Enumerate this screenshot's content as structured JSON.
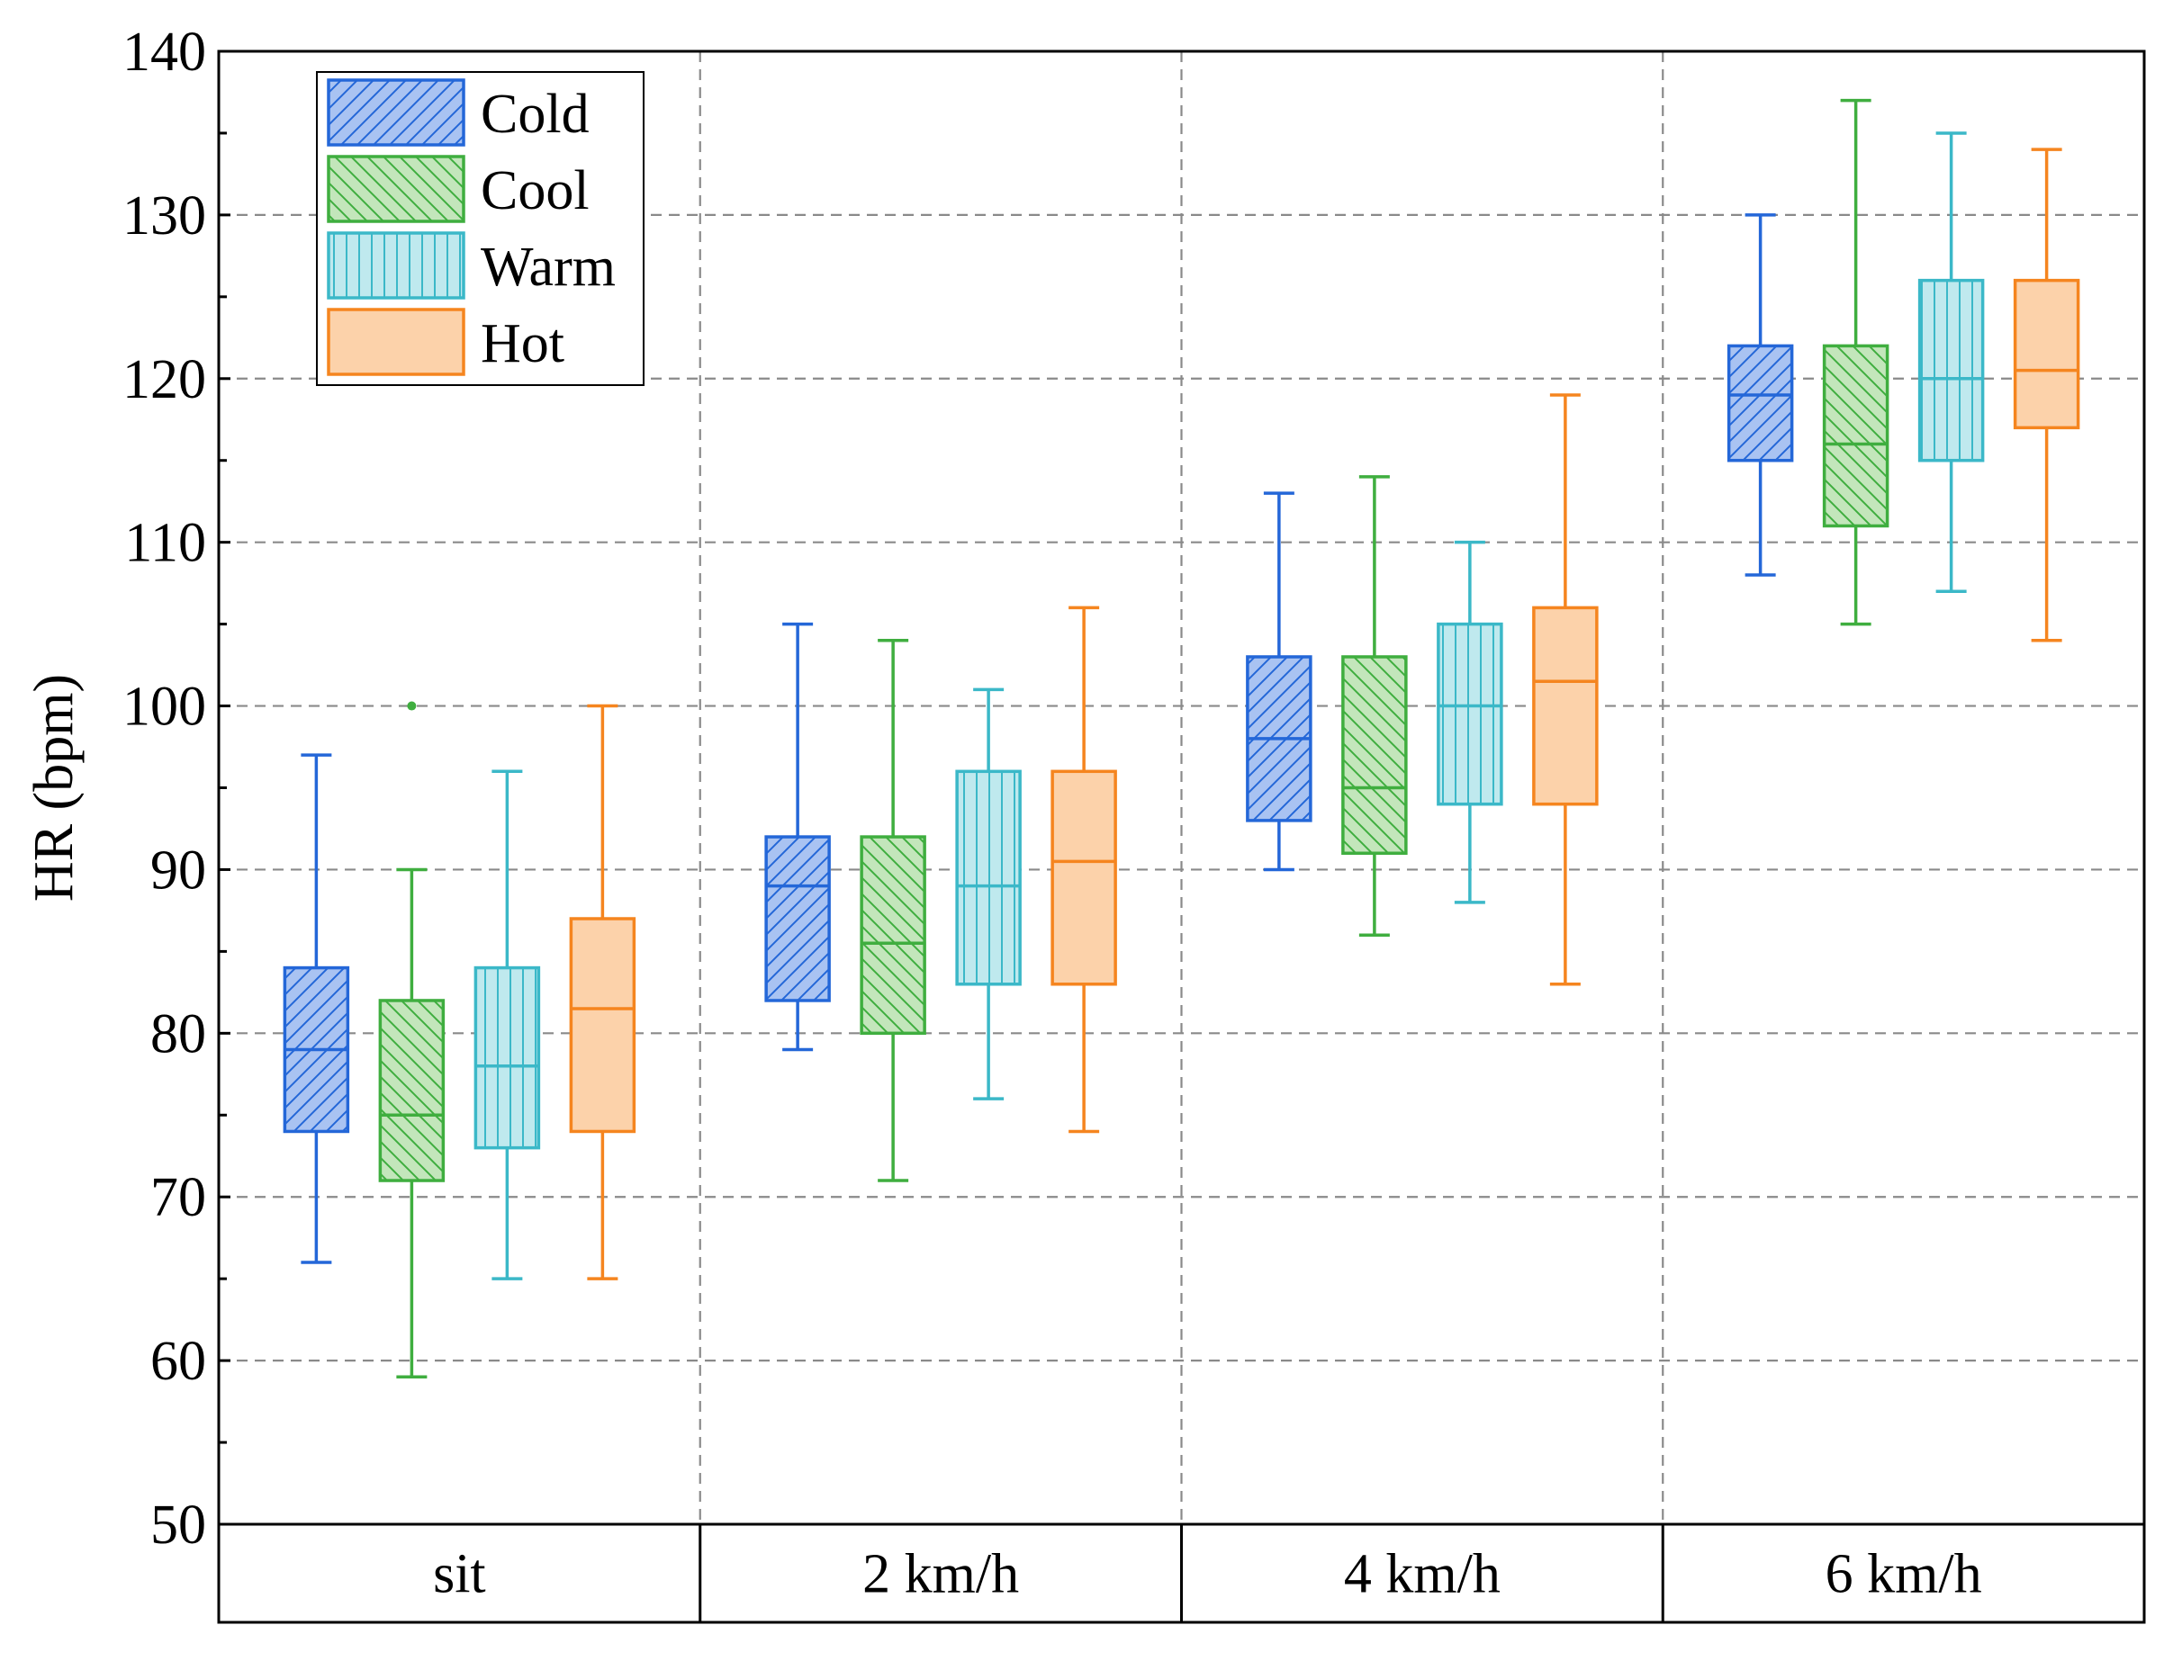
{
  "chart_data": {
    "type": "box",
    "title": "",
    "xlabel": "",
    "ylabel": "HR (bpm)",
    "ylim": [
      50,
      140
    ],
    "y_ticks": [
      50,
      60,
      70,
      80,
      90,
      100,
      110,
      120,
      130,
      140
    ],
    "y_minor_step": 5,
    "grid": true,
    "legend_position": "top-left",
    "categories": [
      "sit",
      "2 km/h",
      "4 km/h",
      "6 km/h"
    ],
    "series": [
      {
        "name": "Cold",
        "color": "#2467d8",
        "fill": "#a9c3f2",
        "pattern": "diagonal-up",
        "boxes": [
          {
            "min": 66,
            "q1": 74,
            "median": 79,
            "q3": 84,
            "max": 97,
            "outliers": []
          },
          {
            "min": 79,
            "q1": 82,
            "median": 89,
            "q3": 92,
            "max": 105,
            "outliers": []
          },
          {
            "min": 90,
            "q1": 93,
            "median": 98,
            "q3": 103,
            "max": 113,
            "outliers": []
          },
          {
            "min": 108,
            "q1": 115,
            "median": 119,
            "q3": 122,
            "max": 130,
            "outliers": []
          }
        ]
      },
      {
        "name": "Cool",
        "color": "#3fae3f",
        "fill": "#c3e6bb",
        "pattern": "diagonal-down",
        "boxes": [
          {
            "min": 59,
            "q1": 71,
            "median": 75,
            "q3": 82,
            "max": 90,
            "outliers": [
              100
            ]
          },
          {
            "min": 71,
            "q1": 80,
            "median": 85.5,
            "q3": 92,
            "max": 104,
            "outliers": []
          },
          {
            "min": 86,
            "q1": 91,
            "median": 95,
            "q3": 103,
            "max": 114,
            "outliers": []
          },
          {
            "min": 105,
            "q1": 111,
            "median": 116,
            "q3": 122,
            "max": 137,
            "outliers": []
          }
        ]
      },
      {
        "name": "Warm",
        "color": "#3bb8c8",
        "fill": "#bfe9ee",
        "pattern": "vertical",
        "boxes": [
          {
            "min": 65,
            "q1": 73,
            "median": 78,
            "q3": 84,
            "max": 96,
            "outliers": []
          },
          {
            "min": 76,
            "q1": 83,
            "median": 89,
            "q3": 96,
            "max": 101,
            "outliers": []
          },
          {
            "min": 88,
            "q1": 94,
            "median": 100,
            "q3": 105,
            "max": 110,
            "outliers": []
          },
          {
            "min": 107,
            "q1": 115,
            "median": 120,
            "q3": 126,
            "max": 135,
            "outliers": []
          }
        ]
      },
      {
        "name": "Hot",
        "color": "#f5851f",
        "fill": "#fcd2aa",
        "pattern": "solid",
        "boxes": [
          {
            "min": 65,
            "q1": 74,
            "median": 81.5,
            "q3": 87,
            "max": 100,
            "outliers": []
          },
          {
            "min": 74,
            "q1": 83,
            "median": 90.5,
            "q3": 96,
            "max": 106,
            "outliers": []
          },
          {
            "min": 83,
            "q1": 94,
            "median": 101.5,
            "q3": 106,
            "max": 119,
            "outliers": []
          },
          {
            "min": 104,
            "q1": 117,
            "median": 120.5,
            "q3": 126,
            "max": 134,
            "outliers": []
          }
        ]
      }
    ]
  }
}
